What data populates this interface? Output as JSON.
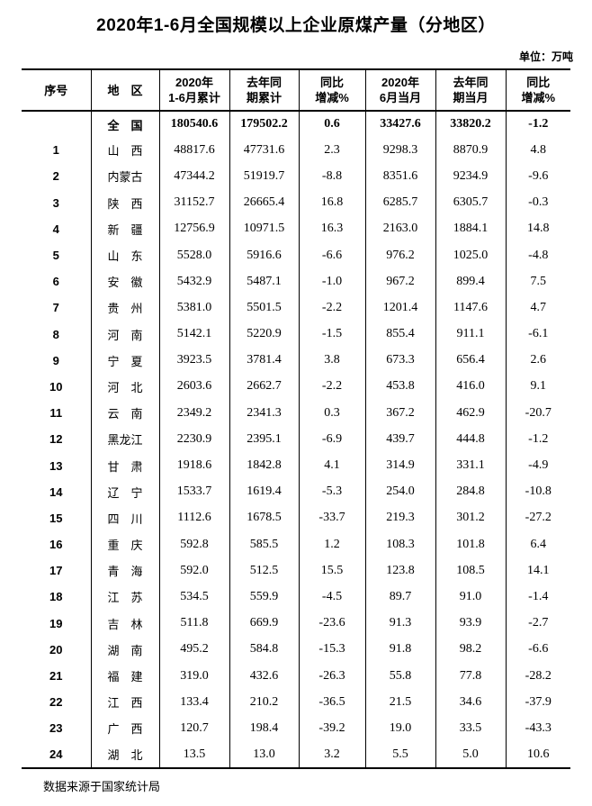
{
  "page": {
    "title": "2020年1-6月全国规模以上企业原煤产量（分地区）",
    "unit_label": "单位：万吨",
    "footer": "数据来源于国家统计局"
  },
  "table": {
    "headers": [
      {
        "line1": "序号",
        "line2": ""
      },
      {
        "line1": "地　区",
        "line2": ""
      },
      {
        "line1": "2020年",
        "line2": "1-6月累计"
      },
      {
        "line1": "去年同",
        "line2": "期累计"
      },
      {
        "line1": "同比",
        "line2": "增减%"
      },
      {
        "line1": "2020年",
        "line2": "6月当月"
      },
      {
        "line1": "去年同",
        "line2": "期当月"
      },
      {
        "line1": "同比",
        "line2": "增减%"
      }
    ],
    "rows": [
      {
        "no": "",
        "region": "全　国",
        "cum2020": "180540.6",
        "prev_cum": "179502.2",
        "yoy_cum": "0.6",
        "jun2020": "33427.6",
        "prev_jun": "33820.2",
        "yoy_jun": "-1.2",
        "bold": true
      },
      {
        "no": "1",
        "region": "山　西",
        "cum2020": "48817.6",
        "prev_cum": "47731.6",
        "yoy_cum": "2.3",
        "jun2020": "9298.3",
        "prev_jun": "8870.9",
        "yoy_jun": "4.8"
      },
      {
        "no": "2",
        "region": "内蒙古",
        "cum2020": "47344.2",
        "prev_cum": "51919.7",
        "yoy_cum": "-8.8",
        "jun2020": "8351.6",
        "prev_jun": "9234.9",
        "yoy_jun": "-9.6"
      },
      {
        "no": "3",
        "region": "陕　西",
        "cum2020": "31152.7",
        "prev_cum": "26665.4",
        "yoy_cum": "16.8",
        "jun2020": "6285.7",
        "prev_jun": "6305.7",
        "yoy_jun": "-0.3"
      },
      {
        "no": "4",
        "region": "新　疆",
        "cum2020": "12756.9",
        "prev_cum": "10971.5",
        "yoy_cum": "16.3",
        "jun2020": "2163.0",
        "prev_jun": "1884.1",
        "yoy_jun": "14.8"
      },
      {
        "no": "5",
        "region": "山　东",
        "cum2020": "5528.0",
        "prev_cum": "5916.6",
        "yoy_cum": "-6.6",
        "jun2020": "976.2",
        "prev_jun": "1025.0",
        "yoy_jun": "-4.8"
      },
      {
        "no": "6",
        "region": "安　徽",
        "cum2020": "5432.9",
        "prev_cum": "5487.1",
        "yoy_cum": "-1.0",
        "jun2020": "967.2",
        "prev_jun": "899.4",
        "yoy_jun": "7.5"
      },
      {
        "no": "7",
        "region": "贵　州",
        "cum2020": "5381.0",
        "prev_cum": "5501.5",
        "yoy_cum": "-2.2",
        "jun2020": "1201.4",
        "prev_jun": "1147.6",
        "yoy_jun": "4.7"
      },
      {
        "no": "8",
        "region": "河　南",
        "cum2020": "5142.1",
        "prev_cum": "5220.9",
        "yoy_cum": "-1.5",
        "jun2020": "855.4",
        "prev_jun": "911.1",
        "yoy_jun": "-6.1"
      },
      {
        "no": "9",
        "region": "宁　夏",
        "cum2020": "3923.5",
        "prev_cum": "3781.4",
        "yoy_cum": "3.8",
        "jun2020": "673.3",
        "prev_jun": "656.4",
        "yoy_jun": "2.6"
      },
      {
        "no": "10",
        "region": "河　北",
        "cum2020": "2603.6",
        "prev_cum": "2662.7",
        "yoy_cum": "-2.2",
        "jun2020": "453.8",
        "prev_jun": "416.0",
        "yoy_jun": "9.1"
      },
      {
        "no": "11",
        "region": "云　南",
        "cum2020": "2349.2",
        "prev_cum": "2341.3",
        "yoy_cum": "0.3",
        "jun2020": "367.2",
        "prev_jun": "462.9",
        "yoy_jun": "-20.7"
      },
      {
        "no": "12",
        "region": "黑龙江",
        "cum2020": "2230.9",
        "prev_cum": "2395.1",
        "yoy_cum": "-6.9",
        "jun2020": "439.7",
        "prev_jun": "444.8",
        "yoy_jun": "-1.2"
      },
      {
        "no": "13",
        "region": "甘　肃",
        "cum2020": "1918.6",
        "prev_cum": "1842.8",
        "yoy_cum": "4.1",
        "jun2020": "314.9",
        "prev_jun": "331.1",
        "yoy_jun": "-4.9"
      },
      {
        "no": "14",
        "region": "辽　宁",
        "cum2020": "1533.7",
        "prev_cum": "1619.4",
        "yoy_cum": "-5.3",
        "jun2020": "254.0",
        "prev_jun": "284.8",
        "yoy_jun": "-10.8"
      },
      {
        "no": "15",
        "region": "四　川",
        "cum2020": "1112.6",
        "prev_cum": "1678.5",
        "yoy_cum": "-33.7",
        "jun2020": "219.3",
        "prev_jun": "301.2",
        "yoy_jun": "-27.2"
      },
      {
        "no": "16",
        "region": "重　庆",
        "cum2020": "592.8",
        "prev_cum": "585.5",
        "yoy_cum": "1.2",
        "jun2020": "108.3",
        "prev_jun": "101.8",
        "yoy_jun": "6.4"
      },
      {
        "no": "17",
        "region": "青　海",
        "cum2020": "592.0",
        "prev_cum": "512.5",
        "yoy_cum": "15.5",
        "jun2020": "123.8",
        "prev_jun": "108.5",
        "yoy_jun": "14.1"
      },
      {
        "no": "18",
        "region": "江　苏",
        "cum2020": "534.5",
        "prev_cum": "559.9",
        "yoy_cum": "-4.5",
        "jun2020": "89.7",
        "prev_jun": "91.0",
        "yoy_jun": "-1.4"
      },
      {
        "no": "19",
        "region": "吉　林",
        "cum2020": "511.8",
        "prev_cum": "669.9",
        "yoy_cum": "-23.6",
        "jun2020": "91.3",
        "prev_jun": "93.9",
        "yoy_jun": "-2.7"
      },
      {
        "no": "20",
        "region": "湖　南",
        "cum2020": "495.2",
        "prev_cum": "584.8",
        "yoy_cum": "-15.3",
        "jun2020": "91.8",
        "prev_jun": "98.2",
        "yoy_jun": "-6.6"
      },
      {
        "no": "21",
        "region": "福　建",
        "cum2020": "319.0",
        "prev_cum": "432.6",
        "yoy_cum": "-26.3",
        "jun2020": "55.8",
        "prev_jun": "77.8",
        "yoy_jun": "-28.2"
      },
      {
        "no": "22",
        "region": "江　西",
        "cum2020": "133.4",
        "prev_cum": "210.2",
        "yoy_cum": "-36.5",
        "jun2020": "21.5",
        "prev_jun": "34.6",
        "yoy_jun": "-37.9"
      },
      {
        "no": "23",
        "region": "广　西",
        "cum2020": "120.7",
        "prev_cum": "198.4",
        "yoy_cum": "-39.2",
        "jun2020": "19.0",
        "prev_jun": "33.5",
        "yoy_jun": "-43.3"
      },
      {
        "no": "24",
        "region": "湖　北",
        "cum2020": "13.5",
        "prev_cum": "13.0",
        "yoy_cum": "3.2",
        "jun2020": "5.5",
        "prev_jun": "5.0",
        "yoy_jun": "10.6"
      }
    ]
  }
}
